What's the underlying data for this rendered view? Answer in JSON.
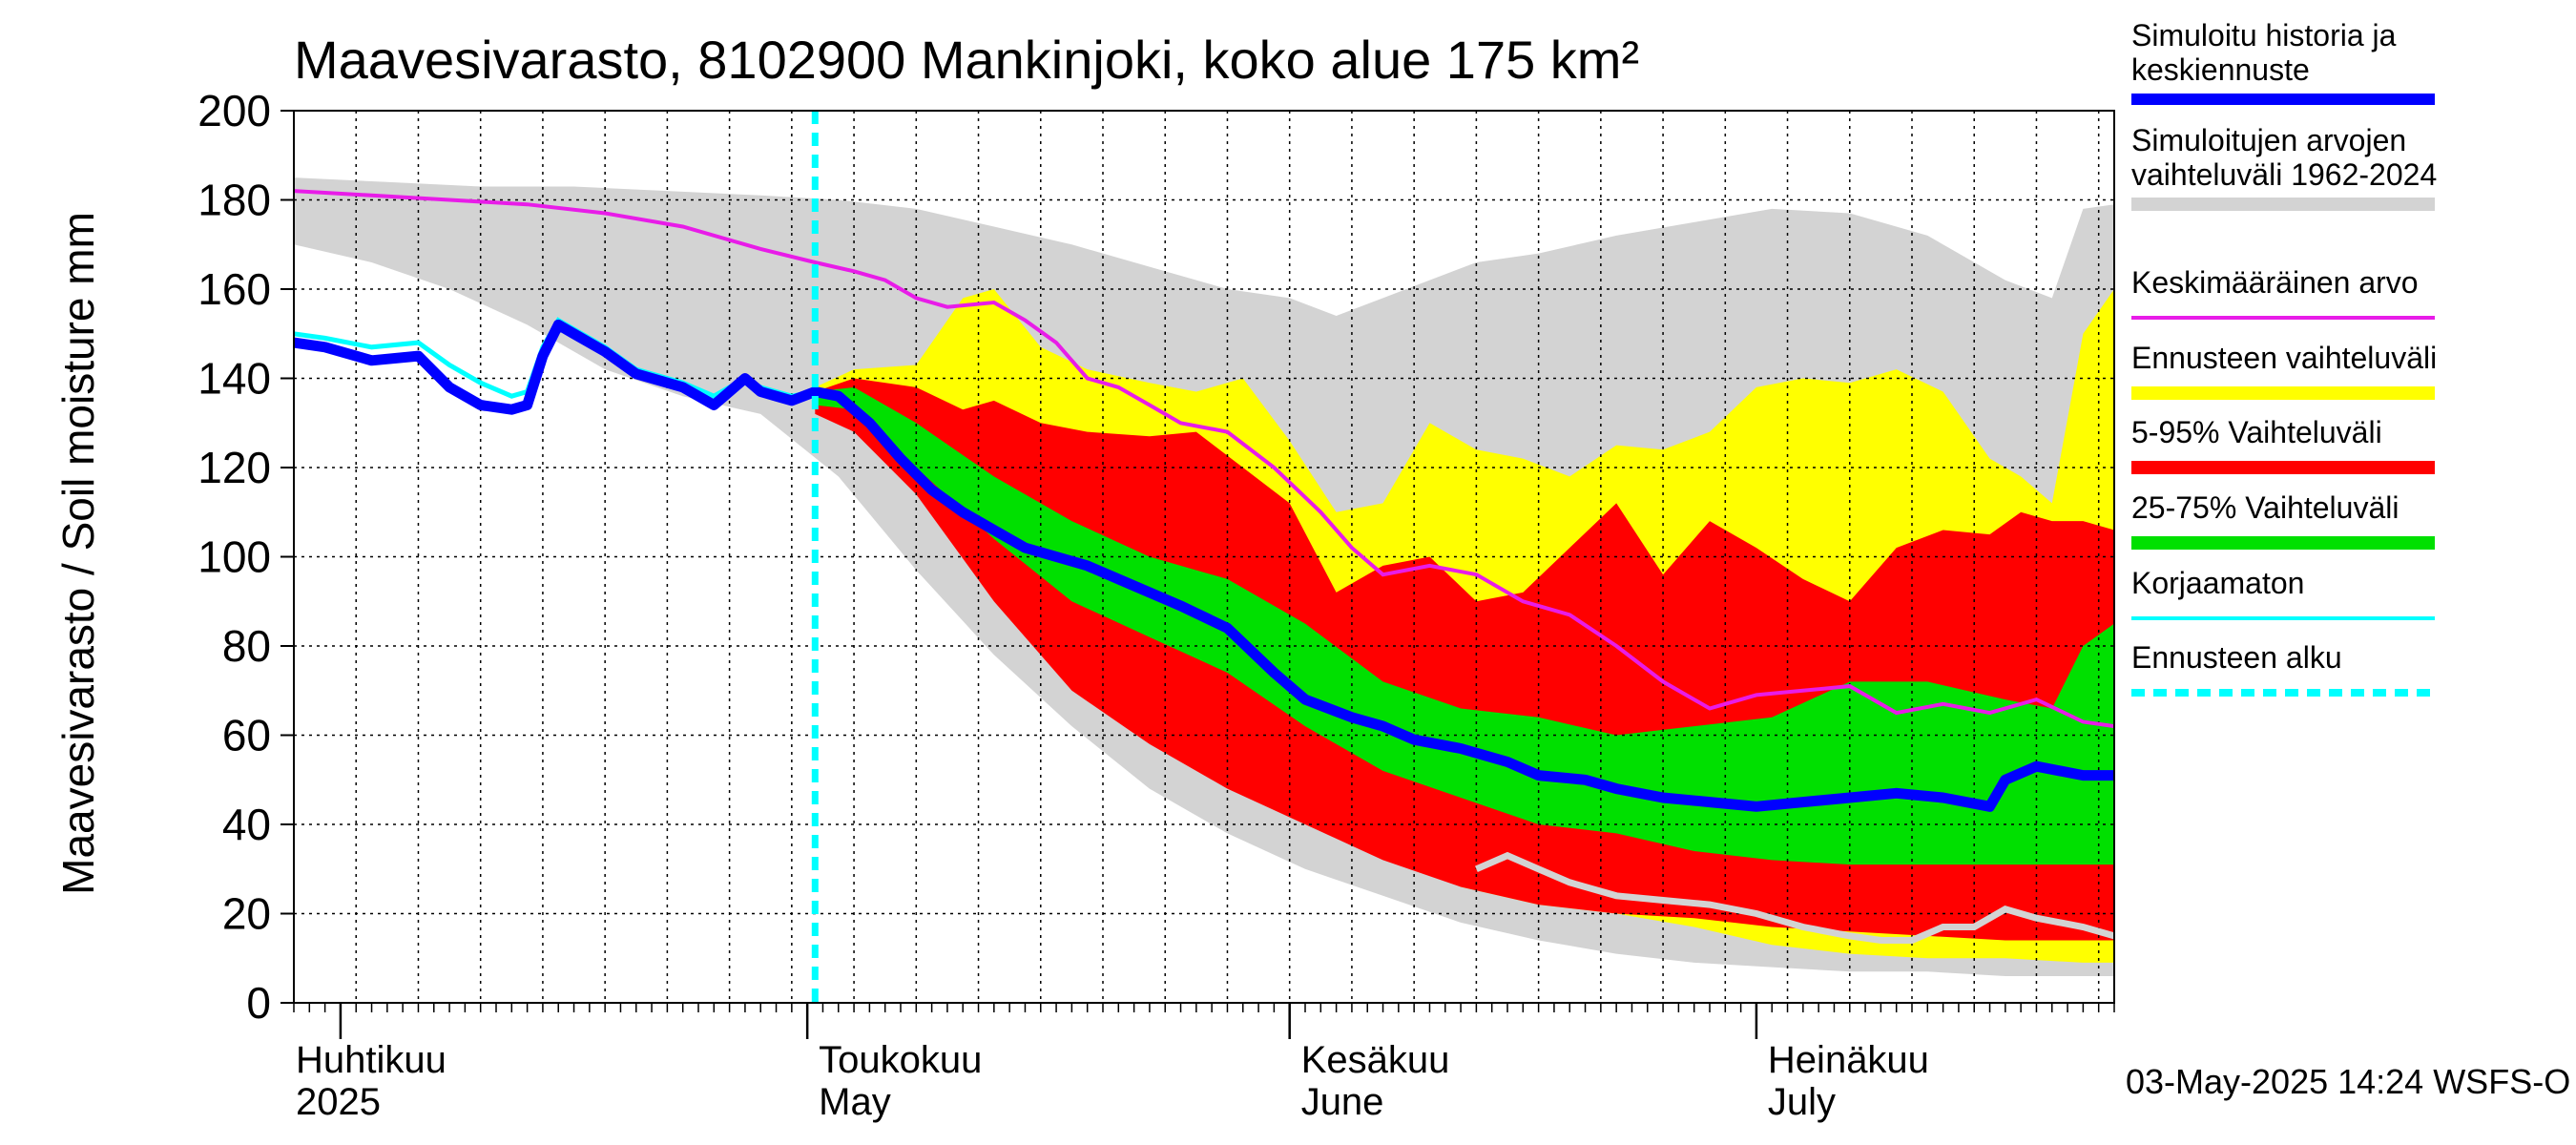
{
  "chart_data": {
    "type": "area",
    "title": "Maavesivarasto, 8102900 Mankinjoki, koko alue 175 km²",
    "ylabel": "Maavesivarasto / Soil moisture   mm",
    "xlabel": "",
    "ylim": [
      0,
      200
    ],
    "yticks": [
      0,
      20,
      40,
      60,
      80,
      100,
      120,
      140,
      160,
      180,
      200
    ],
    "x_range_days": [
      0,
      117
    ],
    "x_start": "2025-03-29",
    "forecast_start_day": 33.5,
    "grid": true,
    "legend_position": "right",
    "month_labels": [
      {
        "fi": "Huhtikuu",
        "en": "2025",
        "day": 0
      },
      {
        "fi": "Toukokuu",
        "en": "May",
        "day": 30
      },
      {
        "fi": "Kesäkuu",
        "en": "June",
        "day": 61
      },
      {
        "fi": "Heinäkuu",
        "en": "July",
        "day": 91
      }
    ],
    "month_boundaries": [
      3,
      33,
      64,
      94
    ],
    "footer": "03-May-2025 14:24 WSFS-O",
    "legend": [
      {
        "label": "Simuloitu historia ja keskiennuste",
        "line1": "Simuloitu historia ja",
        "line2": "keskiennuste",
        "color": "#0000ff",
        "style": "thick"
      },
      {
        "label": "Simuloitujen arvojen vaihteluväli 1962-2024",
        "line1": "Simuloitujen arvojen",
        "line2": "vaihteluväli 1962-2024",
        "color": "#d3d3d3",
        "style": "band"
      },
      {
        "label": "Keskimääräinen arvo",
        "color": "#e81ce8",
        "style": "line"
      },
      {
        "label": "Ennusteen vaihteluväli",
        "color": "#ffff00",
        "style": "band"
      },
      {
        "label": "5-95% Vaihteluväli",
        "color": "#ff0000",
        "style": "band"
      },
      {
        "label": "25-75% Vaihteluväli",
        "color": "#00e000",
        "style": "band"
      },
      {
        "label": "Korjaamaton",
        "color": "#00ffff",
        "style": "line"
      },
      {
        "label": "Ennusteen alku",
        "color": "#00ffff",
        "style": "dashed"
      }
    ],
    "series": [
      {
        "name": "Simuloitujen arvojen vaihteluväli 1962-2024 (max)",
        "color": "#d3d3d3",
        "x": [
          0,
          6,
          12,
          18,
          24,
          30,
          35,
          40,
          45,
          50,
          55,
          60,
          64,
          67,
          70,
          73,
          76,
          80,
          85,
          90,
          95,
          100,
          105,
          110,
          113,
          115,
          117
        ],
        "y": [
          185,
          184,
          183,
          183,
          182,
          181,
          180,
          178,
          174,
          170,
          165,
          160,
          158,
          154,
          158,
          162,
          166,
          168,
          172,
          175,
          178,
          177,
          172,
          162,
          158,
          178,
          179
        ]
      },
      {
        "name": "Simuloitujen arvojen vaihteluväli 1962-2024 (min)",
        "color": "#d3d3d3",
        "x": [
          0,
          5,
          10,
          15,
          20,
          25,
          30,
          35,
          40,
          45,
          50,
          55,
          60,
          65,
          70,
          75,
          80,
          85,
          90,
          95,
          100,
          105,
          110,
          115,
          117
        ],
        "y": [
          170,
          166,
          160,
          152,
          142,
          136,
          132,
          118,
          97,
          78,
          62,
          48,
          38,
          30,
          24,
          18,
          14,
          11,
          9,
          8,
          7,
          7,
          6,
          6,
          6
        ]
      },
      {
        "name": "Ennusteen vaihteluväli (max)",
        "color": "#ffff00",
        "x": [
          33.5,
          36,
          40,
          43,
          45,
          48,
          51,
          55,
          58,
          61,
          64,
          67,
          70,
          73,
          76,
          79,
          82,
          85,
          88,
          91,
          94,
          97,
          100,
          103,
          106,
          109,
          111,
          113,
          115,
          117
        ],
        "y": [
          138,
          142,
          143,
          158,
          160,
          147,
          142,
          139,
          137,
          140,
          126,
          110,
          112,
          130,
          124,
          122,
          118,
          125,
          124,
          128,
          138,
          140,
          139,
          142,
          137,
          122,
          118,
          112,
          150,
          160
        ]
      },
      {
        "name": "Ennusteen vaihteluväli (min)",
        "color": "#ffff00",
        "x": [
          33.5,
          36,
          40,
          45,
          50,
          55,
          60,
          65,
          70,
          75,
          80,
          85,
          90,
          95,
          100,
          105,
          110,
          115,
          117
        ],
        "y": [
          133,
          128,
          118,
          95,
          75,
          62,
          52,
          45,
          34,
          26,
          22,
          20,
          17,
          13,
          11,
          10,
          10,
          9,
          9
        ]
      },
      {
        "name": "5-95% Vaihteluväli (max)",
        "color": "#ff0000",
        "x": [
          33.5,
          36,
          40,
          43,
          45,
          48,
          51,
          55,
          58,
          61,
          64,
          67,
          70,
          73,
          76,
          79,
          82,
          85,
          88,
          91,
          94,
          97,
          100,
          103,
          106,
          109,
          111,
          113,
          115,
          117
        ],
        "y": [
          137,
          140,
          138,
          133,
          135,
          130,
          128,
          127,
          128,
          120,
          112,
          92,
          98,
          100,
          90,
          92,
          102,
          112,
          96,
          108,
          102,
          95,
          90,
          102,
          106,
          105,
          110,
          108,
          108,
          106
        ]
      },
      {
        "name": "5-95% Vaihteluväli (min)",
        "color": "#ff0000",
        "x": [
          33.5,
          36,
          40,
          45,
          50,
          55,
          60,
          65,
          70,
          75,
          80,
          85,
          90,
          95,
          100,
          105,
          110,
          115,
          117
        ],
        "y": [
          132,
          128,
          114,
          90,
          70,
          58,
          48,
          40,
          32,
          26,
          22,
          20,
          19,
          17,
          16,
          15,
          14,
          14,
          14
        ]
      },
      {
        "name": "25-75% Vaihteluväli (max)",
        "color": "#00e000",
        "x": [
          33.5,
          36,
          40,
          45,
          50,
          55,
          60,
          65,
          70,
          75,
          80,
          85,
          90,
          95,
          100,
          105,
          110,
          113,
          115,
          117
        ],
        "y": [
          137,
          138,
          130,
          118,
          108,
          100,
          95,
          85,
          72,
          66,
          64,
          60,
          62,
          64,
          72,
          72,
          68,
          66,
          80,
          85
        ]
      },
      {
        "name": "25-75% Vaihteluväli (min)",
        "color": "#00e000",
        "x": [
          33.5,
          36,
          40,
          45,
          50,
          55,
          60,
          65,
          70,
          75,
          80,
          85,
          90,
          95,
          100,
          105,
          110,
          115,
          117
        ],
        "y": [
          134,
          133,
          120,
          104,
          90,
          82,
          74,
          62,
          52,
          46,
          40,
          38,
          34,
          32,
          31,
          31,
          31,
          31,
          31
        ]
      },
      {
        "name": "Keskimääräinen arvo",
        "color": "#e81ce8",
        "x": [
          0,
          5,
          10,
          15,
          20,
          25,
          30,
          33.5,
          36,
          38,
          40,
          42,
          45,
          47,
          49,
          51,
          53,
          55,
          57,
          60,
          63,
          66,
          68,
          70,
          73,
          76,
          79,
          82,
          85,
          88,
          91,
          94,
          97,
          100,
          103,
          106,
          109,
          112,
          115,
          117
        ],
        "y": [
          182,
          181,
          180,
          179,
          177,
          174,
          169,
          166,
          164,
          162,
          158,
          156,
          157,
          153,
          148,
          140,
          138,
          134,
          130,
          128,
          120,
          110,
          102,
          96,
          98,
          96,
          90,
          87,
          80,
          72,
          66,
          69,
          70,
          71,
          65,
          67,
          65,
          68,
          63,
          62
        ]
      },
      {
        "name": "Simuloitu historia ja keskiennuste",
        "color": "#0000ff",
        "x": [
          0,
          2,
          5,
          8,
          10,
          12,
          14,
          15,
          16,
          17,
          18,
          20,
          22,
          25,
          27,
          28,
          29,
          30,
          31,
          32,
          33.5,
          35,
          37,
          39,
          41,
          43,
          45,
          47,
          49,
          51,
          53,
          55,
          57,
          60,
          63,
          65,
          68,
          70,
          72,
          75,
          78,
          80,
          83,
          85,
          88,
          91,
          94,
          97,
          100,
          103,
          106,
          109,
          110,
          112,
          115,
          117
        ],
        "y": [
          148,
          147,
          144,
          145,
          138,
          134,
          133,
          134,
          145,
          152,
          150,
          146,
          141,
          138,
          134,
          137,
          140,
          137,
          136,
          135,
          137,
          136,
          130,
          122,
          115,
          110,
          106,
          102,
          100,
          98,
          95,
          92,
          89,
          84,
          74,
          68,
          64,
          62,
          59,
          57,
          54,
          51,
          50,
          48,
          46,
          45,
          44,
          45,
          46,
          47,
          46,
          44,
          50,
          53,
          51,
          51
        ]
      },
      {
        "name": "Korjaamaton",
        "color": "#00ffff",
        "x": [
          0,
          2,
          5,
          8,
          10,
          12,
          14,
          15,
          16,
          17,
          18,
          20,
          22,
          25,
          27,
          28,
          29,
          30,
          31,
          32,
          33.5
        ],
        "y": [
          150,
          149,
          147,
          148,
          143,
          139,
          136,
          137,
          147,
          153,
          151,
          147,
          142,
          139,
          136,
          138,
          140,
          138,
          137,
          136,
          137
        ]
      },
      {
        "name": "Min trace",
        "color": "#d3d3d3",
        "x": [
          76,
          78,
          80,
          82,
          85,
          88,
          91,
          94,
          97,
          100,
          102,
          104,
          106,
          108,
          110,
          112,
          115,
          117
        ],
        "y": [
          30,
          33,
          30,
          27,
          24,
          23,
          22,
          20,
          17,
          15,
          14,
          14,
          17,
          17,
          21,
          19,
          17,
          15
        ]
      }
    ]
  }
}
